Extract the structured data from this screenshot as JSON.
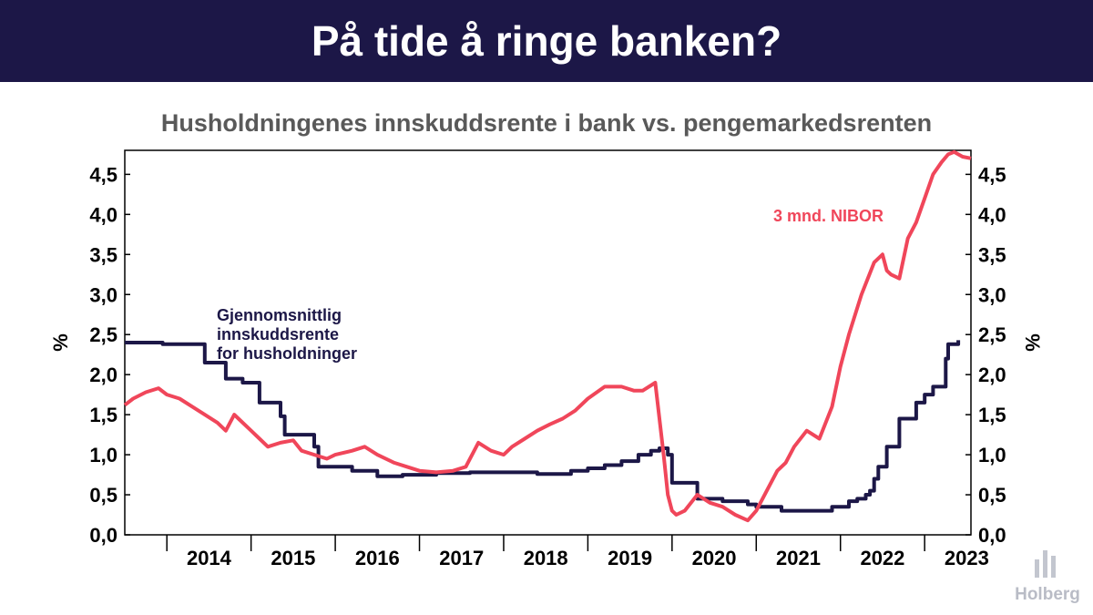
{
  "header": {
    "title": "På tide å ringe banken?"
  },
  "chart_data": {
    "type": "line",
    "title": "Husholdningenes innskuddsrente i bank vs. pengemarkedsrenten",
    "ylabel_left": "%",
    "ylabel_right": "%",
    "ylim": [
      0,
      4.8
    ],
    "yticks": [
      0.0,
      0.5,
      1.0,
      1.5,
      2.0,
      2.5,
      3.0,
      3.5,
      4.0,
      4.5
    ],
    "ytick_labels": [
      "0,0",
      "0,5",
      "1,0",
      "1,5",
      "2,0",
      "2,5",
      "3,0",
      "3,5",
      "4,0",
      "4,5"
    ],
    "xlim": [
      2013.5,
      2023.55
    ],
    "xtick_labels": [
      "2014",
      "2015",
      "2016",
      "2017",
      "2018",
      "2019",
      "2020",
      "2021",
      "2022",
      "2023"
    ],
    "series": [
      {
        "name": "Gjennomsnittlig innskuddsrente for husholdninger",
        "label_lines": [
          "Gjennomsnittlig",
          "innskuddsrente",
          "for husholdninger"
        ],
        "color": "#1c1747",
        "step": true,
        "x": [
          2013.5,
          2013.9,
          2013.95,
          2014.4,
          2014.45,
          2014.65,
          2014.7,
          2014.9,
          2015.1,
          2015.35,
          2015.4,
          2015.75,
          2015.8,
          2016.0,
          2016.2,
          2016.5,
          2016.8,
          2017.2,
          2017.6,
          2018.0,
          2018.4,
          2018.8,
          2019.0,
          2019.2,
          2019.4,
          2019.6,
          2019.75,
          2019.85,
          2019.9,
          2019.95,
          2020.0,
          2020.3,
          2020.6,
          2020.9,
          2021.0,
          2021.3,
          2021.5,
          2021.7,
          2021.9,
          2022.1,
          2022.2,
          2022.3,
          2022.35,
          2022.4,
          2022.45,
          2022.55,
          2022.7,
          2022.9,
          2023.0,
          2023.1,
          2023.25,
          2023.28,
          2023.4
        ],
        "values": [
          2.4,
          2.4,
          2.38,
          2.38,
          2.15,
          2.15,
          1.95,
          1.9,
          1.65,
          1.48,
          1.25,
          1.1,
          0.85,
          0.85,
          0.8,
          0.73,
          0.75,
          0.77,
          0.78,
          0.78,
          0.76,
          0.8,
          0.83,
          0.87,
          0.92,
          1.0,
          1.05,
          1.08,
          1.08,
          1.0,
          0.65,
          0.45,
          0.42,
          0.38,
          0.35,
          0.3,
          0.3,
          0.3,
          0.35,
          0.42,
          0.45,
          0.5,
          0.55,
          0.7,
          0.85,
          1.1,
          1.45,
          1.65,
          1.75,
          1.85,
          2.2,
          2.38,
          2.43
        ]
      },
      {
        "name": "3 mnd. NIBOR",
        "label": "3 mnd. NIBOR",
        "color": "#f0465a",
        "step": false,
        "x": [
          2013.5,
          2013.6,
          2013.75,
          2013.9,
          2014.0,
          2014.15,
          2014.3,
          2014.45,
          2014.6,
          2014.7,
          2014.8,
          2014.85,
          2015.0,
          2015.1,
          2015.2,
          2015.35,
          2015.5,
          2015.6,
          2015.75,
          2015.9,
          2016.0,
          2016.2,
          2016.35,
          2016.5,
          2016.7,
          2016.85,
          2017.0,
          2017.2,
          2017.4,
          2017.55,
          2017.7,
          2017.85,
          2018.0,
          2018.1,
          2018.25,
          2018.4,
          2018.55,
          2018.7,
          2018.85,
          2019.0,
          2019.2,
          2019.4,
          2019.55,
          2019.65,
          2019.8,
          2019.9,
          2019.95,
          2020.0,
          2020.05,
          2020.15,
          2020.3,
          2020.45,
          2020.6,
          2020.75,
          2020.9,
          2021.0,
          2021.15,
          2021.25,
          2021.35,
          2021.45,
          2021.6,
          2021.75,
          2021.9,
          2022.0,
          2022.1,
          2022.25,
          2022.4,
          2022.5,
          2022.55,
          2022.6,
          2022.7,
          2022.8,
          2022.9,
          2023.0,
          2023.1,
          2023.2,
          2023.28,
          2023.35,
          2023.45,
          2023.55
        ],
        "values": [
          1.62,
          1.7,
          1.78,
          1.83,
          1.75,
          1.7,
          1.6,
          1.5,
          1.4,
          1.3,
          1.5,
          1.45,
          1.3,
          1.2,
          1.1,
          1.15,
          1.18,
          1.05,
          1.0,
          0.95,
          1.0,
          1.05,
          1.1,
          1.0,
          0.9,
          0.85,
          0.8,
          0.78,
          0.8,
          0.85,
          1.15,
          1.05,
          1.0,
          1.1,
          1.2,
          1.3,
          1.38,
          1.45,
          1.55,
          1.7,
          1.85,
          1.85,
          1.8,
          1.8,
          1.9,
          1.0,
          0.5,
          0.3,
          0.25,
          0.3,
          0.5,
          0.4,
          0.35,
          0.25,
          0.18,
          0.3,
          0.6,
          0.8,
          0.9,
          1.1,
          1.3,
          1.2,
          1.6,
          2.1,
          2.5,
          3.0,
          3.4,
          3.5,
          3.3,
          3.25,
          3.2,
          3.7,
          3.9,
          4.2,
          4.5,
          4.65,
          4.75,
          4.78,
          4.72,
          4.7
        ]
      }
    ]
  },
  "logo": {
    "text": "Holberg"
  }
}
